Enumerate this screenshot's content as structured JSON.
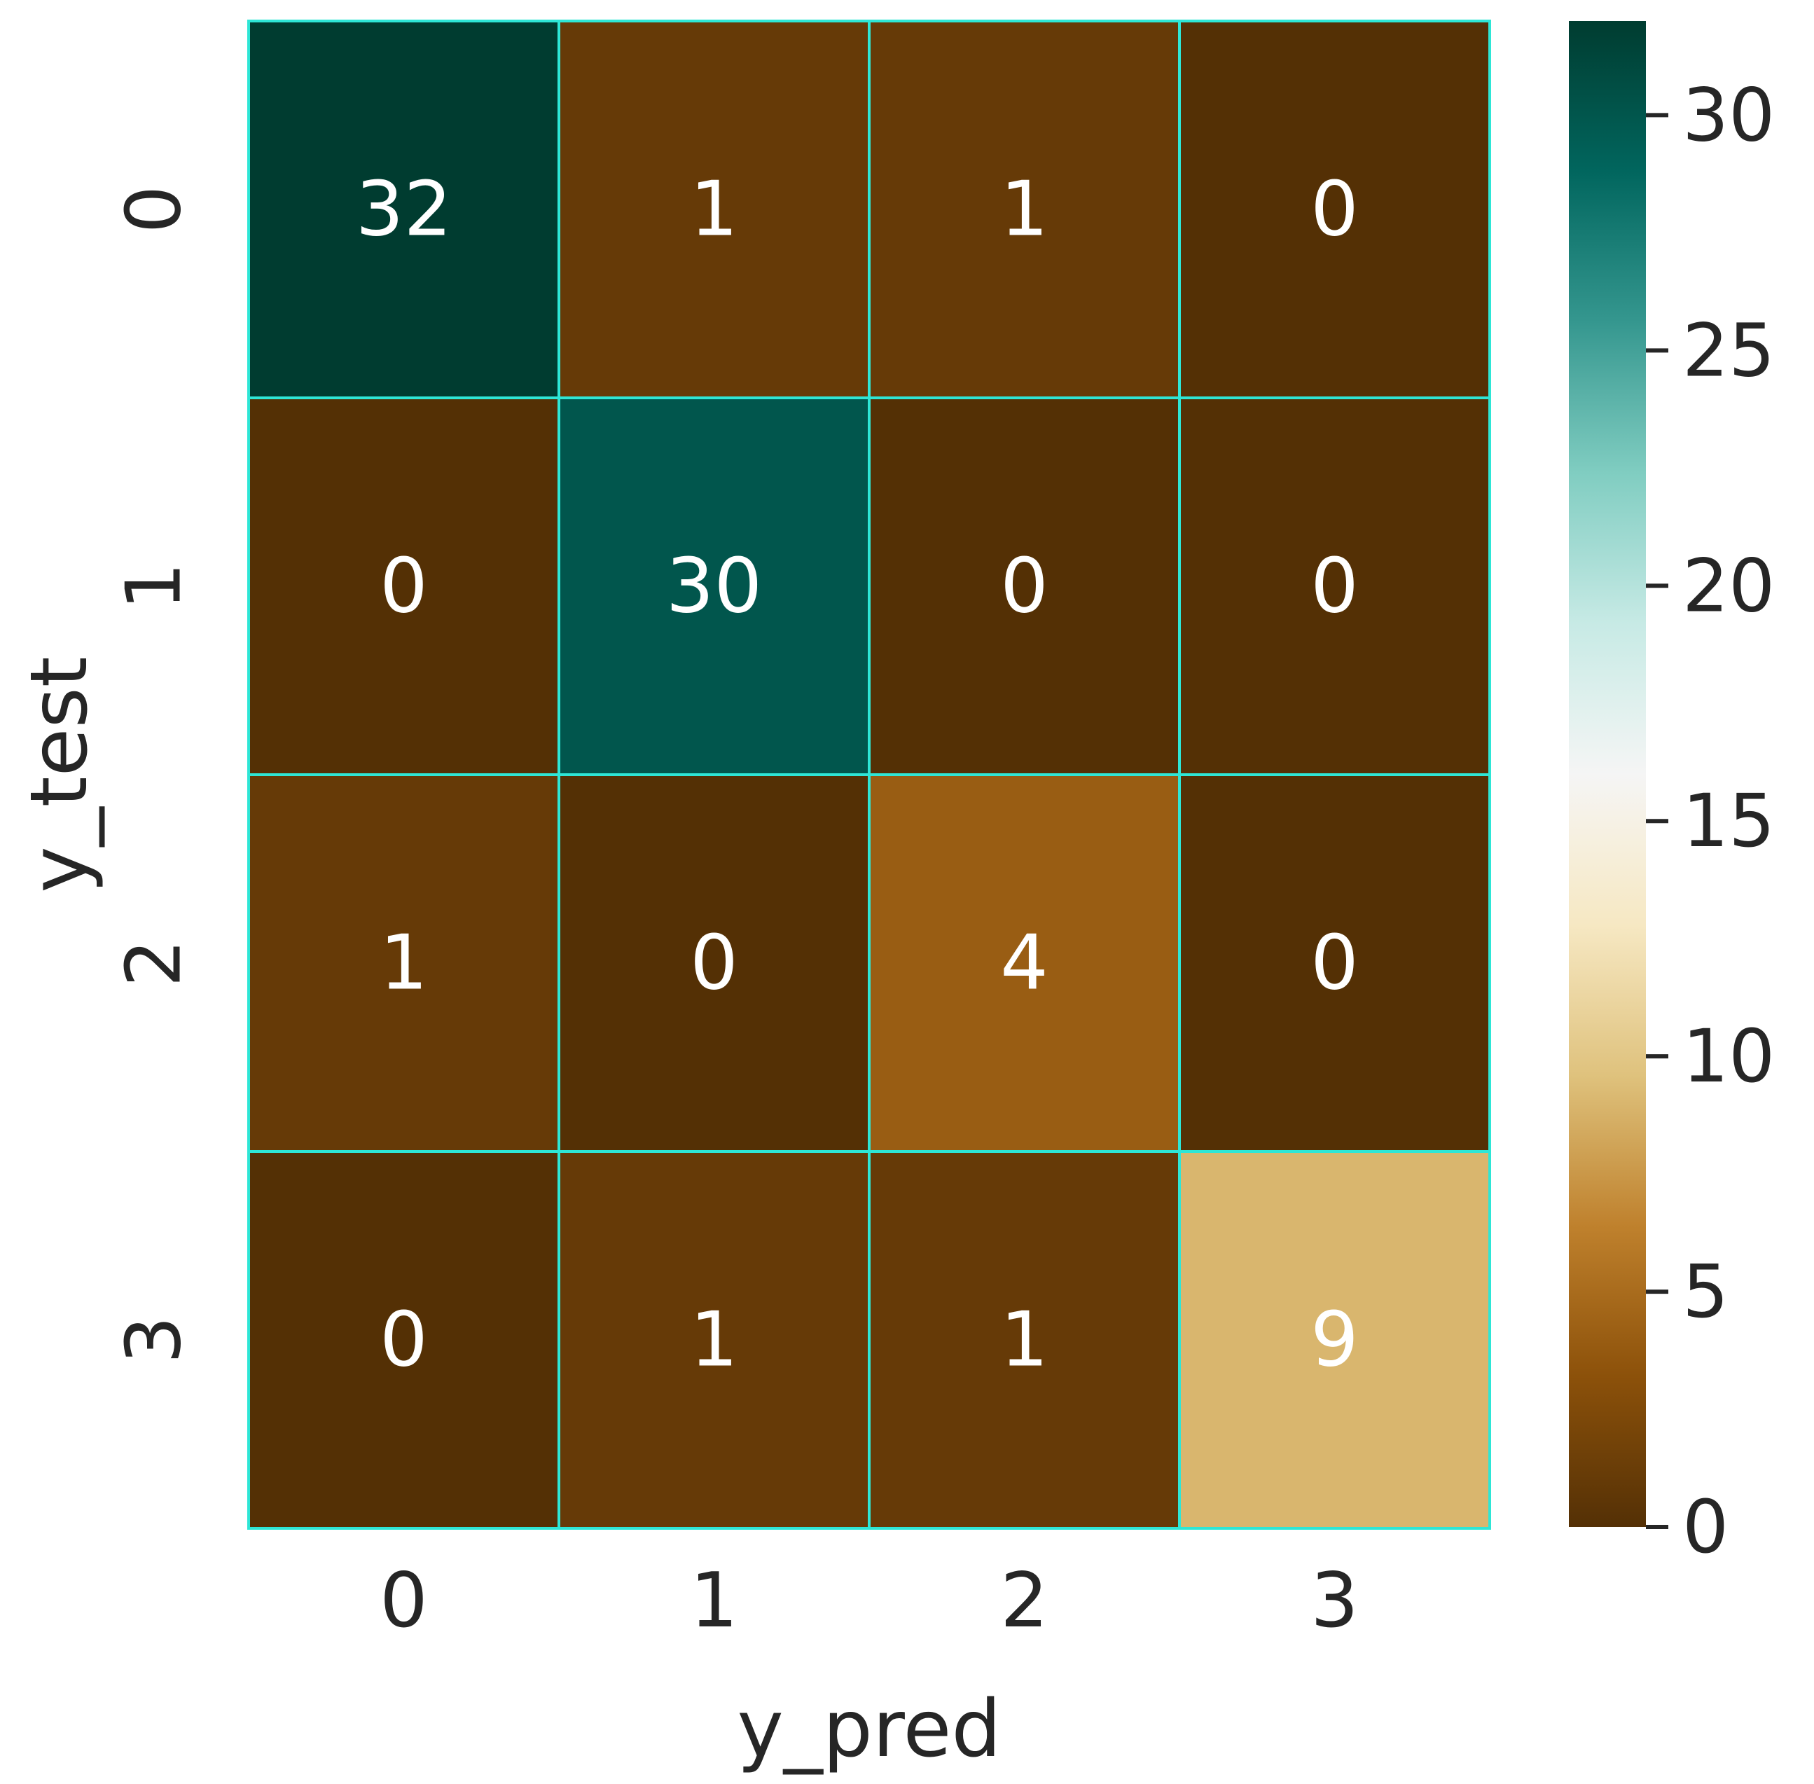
{
  "chart_data": {
    "type": "heatmap",
    "xlabel": "y_pred",
    "ylabel": "y_test",
    "x_categories": [
      "0",
      "1",
      "2",
      "3"
    ],
    "y_categories": [
      "0",
      "1",
      "2",
      "3"
    ],
    "values": [
      [
        32,
        1,
        1,
        0
      ],
      [
        0,
        30,
        0,
        0
      ],
      [
        1,
        0,
        4,
        0
      ],
      [
        0,
        1,
        1,
        9
      ]
    ],
    "colorbar": {
      "colormap": "BrBG",
      "vmin": 0,
      "vmax": 32,
      "ticks": [
        0,
        5,
        10,
        15,
        20,
        25,
        30
      ]
    },
    "cell_border_color": "#2ee6d6",
    "annotation_color_dark": "#ffffff",
    "annotation_color_light": "#262626",
    "grid": false,
    "legend": "none"
  }
}
